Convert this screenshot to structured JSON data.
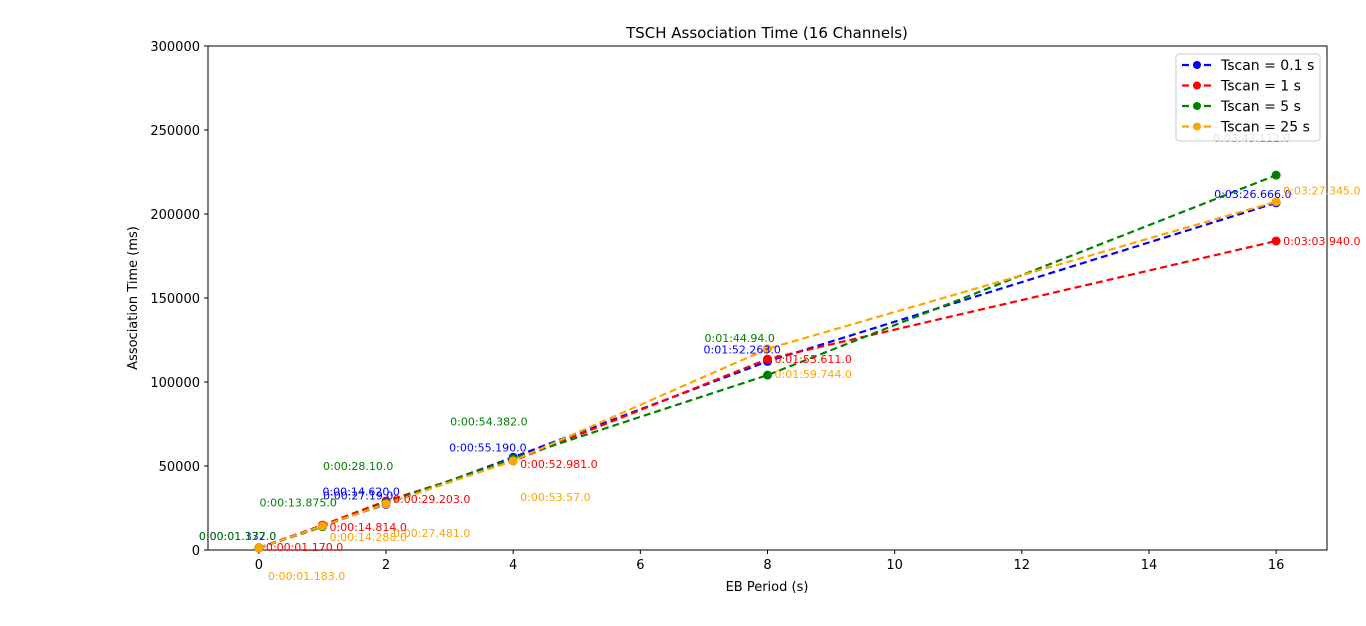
{
  "chart_data": {
    "type": "line",
    "title": "TSCH Association Time (16 Channels)",
    "xlabel": "EB Period (s)",
    "ylabel": "Association Time (ms)",
    "xlim": [
      -0.8,
      16.8
    ],
    "ylim": [
      0,
      300000
    ],
    "x_ticks": [
      0,
      2,
      4,
      6,
      8,
      10,
      12,
      14,
      16
    ],
    "x_tick_labels": [
      "0",
      "2",
      "4",
      "6",
      "8",
      "10",
      "12",
      "14",
      "16"
    ],
    "y_ticks": [
      0,
      50000,
      100000,
      150000,
      200000,
      250000,
      300000
    ],
    "y_tick_labels": [
      "0",
      "50000",
      "100000",
      "150000",
      "200000",
      "250000",
      "300000"
    ],
    "grid": false,
    "legend_position": "top-right",
    "x": [
      0,
      1,
      2,
      4,
      8,
      16
    ],
    "series": [
      {
        "name": "Tscan = 0.1 s",
        "color": "#0000ff",
        "values": [
          1332,
          14620,
          27190,
          55190,
          112263,
          206666
        ],
        "labels": [
          "0:00:01.332.0",
          "0:00:14.620.0",
          "0:00:27.19.0",
          "0:00:55.190.0",
          "0:01:52.263.0",
          "0:03:26.666.0"
        ]
      },
      {
        "name": "Tscan = 1 s",
        "color": "#ff0000",
        "values": [
          1170,
          14814,
          29203,
          52981,
          113611,
          183940
        ],
        "labels": [
          "0:00:01.170.0",
          "0:00:14.814.0",
          "0:00:29.203.0",
          "0:00:52.981.0",
          "0:01:53.611.0",
          "0:03:03.940.0"
        ]
      },
      {
        "name": "Tscan = 5 s",
        "color": "#008000",
        "values": [
          1177,
          13875,
          28100,
          54382,
          104094,
          223112
        ],
        "labels": [
          "0:00:01.177.0",
          "0:00:13.875.0",
          "0:00:28.10.0",
          "0:00:54.382.0",
          "0:01:44.94.0",
          "0:03:43.112.0"
        ]
      },
      {
        "name": "Tscan = 25 s",
        "color": "#ffa500",
        "values": [
          1183,
          14288,
          27481,
          53057,
          119744,
          207345
        ],
        "labels": [
          "0:00:01.183.0",
          "0:00:14.288.0",
          "0:00:27.481.0",
          "0:00:53.57.0",
          "0:01:59.744.0",
          "0:03:27.345.0"
        ]
      }
    ]
  }
}
